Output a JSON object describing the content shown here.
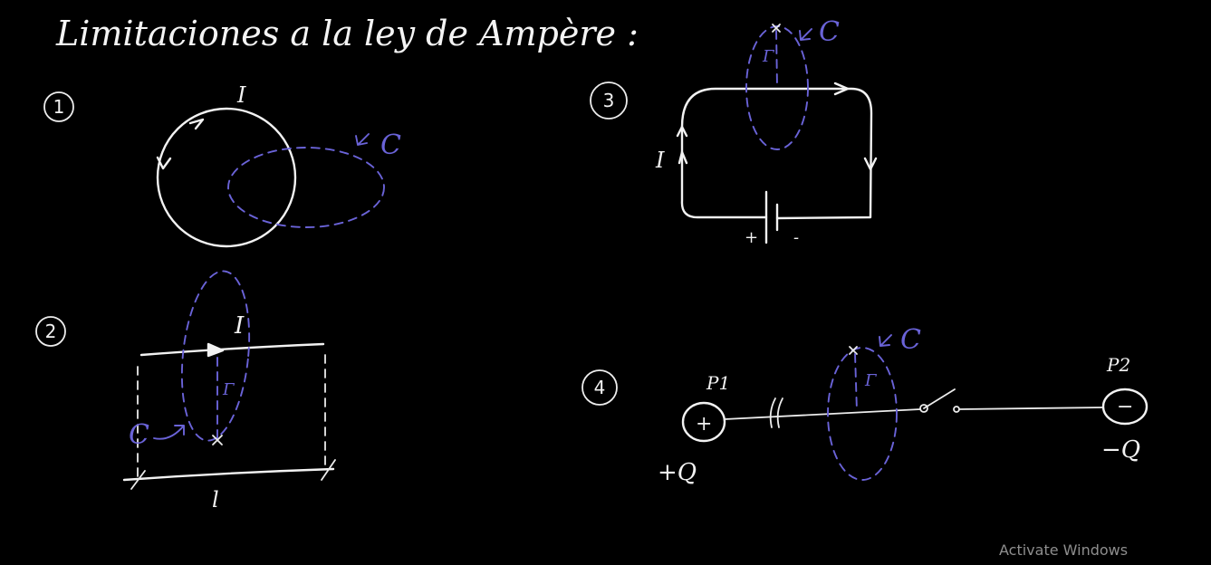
{
  "title": "Limitaciones a la ley de Ampère :",
  "watermark": "Activate Windows",
  "panels": [
    {
      "number": "1",
      "current_label": "I",
      "contour_label": "C"
    },
    {
      "number": "2",
      "current_label": "I",
      "contour_label": "C",
      "surface_label": "Γ",
      "length_label": "l"
    },
    {
      "number": "3",
      "current_label": "I",
      "contour_label": "C",
      "surface_label": "Γ",
      "battery_plus": "+",
      "battery_minus": "-"
    },
    {
      "number": "4",
      "contour_label": "C",
      "surface_label": "Γ",
      "plate1_label": "P1",
      "plate2_label": "P2",
      "plate1_sign": "+",
      "plate2_sign": "−",
      "charge1": "+Q",
      "charge2": "−Q"
    }
  ],
  "colors": {
    "background": "#000000",
    "chalk": "#f2f2f2",
    "contour": "#6a63d8",
    "watermark": "#8e8e8e"
  }
}
